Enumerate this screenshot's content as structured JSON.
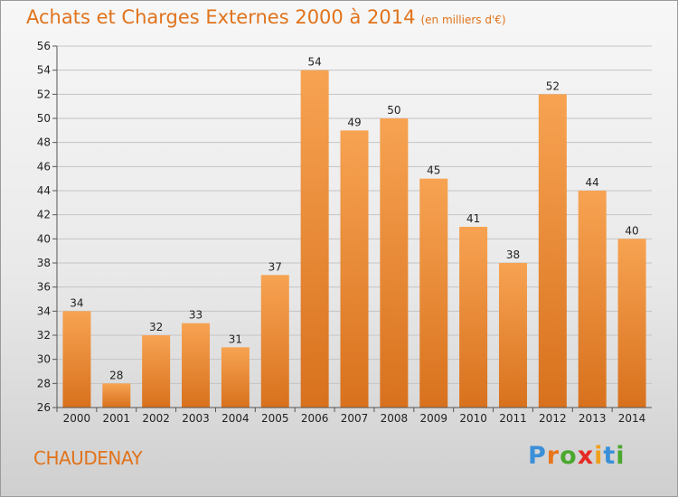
{
  "title": "Achats et Charges Externes 2000 à 2014",
  "unit": "(en milliers d'€)",
  "commune": "CHAUDENAY",
  "logo": {
    "letters": [
      "P",
      "r",
      "o",
      "x",
      "i",
      "t",
      "i"
    ],
    "colors": [
      "#3a8fd8",
      "#e8751a",
      "#4aa82e",
      "#e52b24",
      "#f0a01e",
      "#3a8fd8",
      "#4aa82e"
    ]
  },
  "chart_data": {
    "type": "bar",
    "categories": [
      "2000",
      "2001",
      "2002",
      "2003",
      "2004",
      "2005",
      "2006",
      "2007",
      "2008",
      "2009",
      "2010",
      "2011",
      "2012",
      "2013",
      "2014"
    ],
    "values": [
      34,
      28,
      32,
      33,
      31,
      37,
      54,
      49,
      50,
      45,
      41,
      38,
      52,
      44,
      40
    ],
    "ylim": [
      26,
      56
    ],
    "yticks": [
      26,
      28,
      30,
      32,
      34,
      36,
      38,
      40,
      42,
      44,
      46,
      48,
      50,
      52,
      54,
      56
    ],
    "grid": true,
    "bar_color_top": "#f7a352",
    "bar_color_bottom": "#d8711d"
  }
}
